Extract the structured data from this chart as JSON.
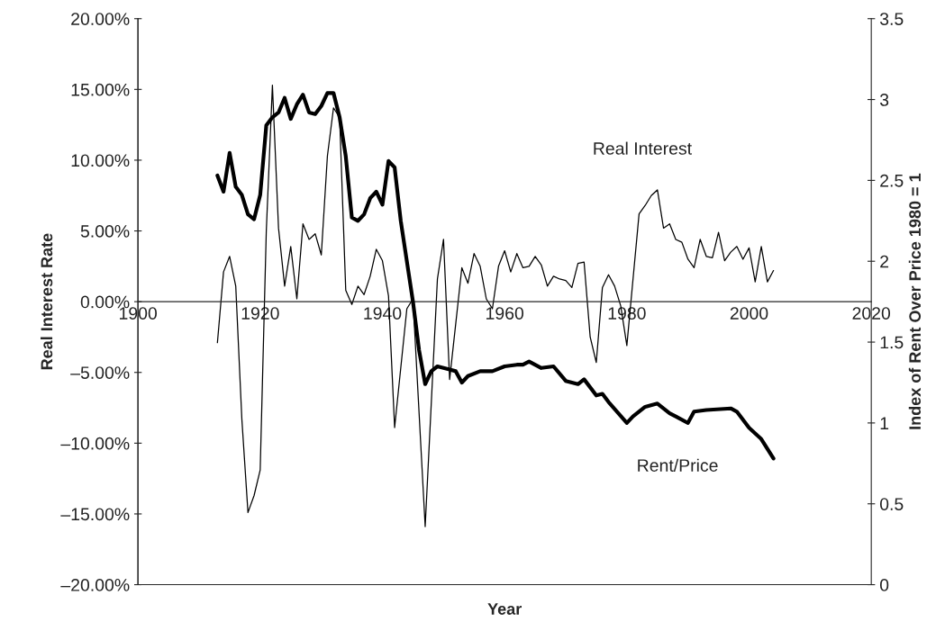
{
  "chart_data": {
    "type": "line",
    "xlabel": "Year",
    "ylabel": "Real Interest Rate",
    "y2label": "Index of Rent Over Price 1980 = 1",
    "xlim": [
      1900,
      2020
    ],
    "xticks": [
      1900,
      1920,
      1940,
      1960,
      1980,
      2000,
      2020
    ],
    "ylim": [
      -20,
      20
    ],
    "yticks": [
      {
        "value": -20,
        "label": "–20.00%"
      },
      {
        "value": -15,
        "label": "–15.00%"
      },
      {
        "value": -10,
        "label": "–10.00%"
      },
      {
        "value": -5,
        "label": "–5.00%"
      },
      {
        "value": 0,
        "label": "0.00%"
      },
      {
        "value": 5,
        "label": "5.00%"
      },
      {
        "value": 10,
        "label": "10.00%"
      },
      {
        "value": 15,
        "label": "15.00%"
      },
      {
        "value": 20,
        "label": "20.00%"
      }
    ],
    "y2lim": [
      0,
      3.5
    ],
    "y2ticks": [
      0,
      0.5,
      1,
      1.5,
      2,
      2.5,
      3,
      3.5
    ],
    "grid": false,
    "legend": false,
    "series": [
      {
        "name": "Real Interest",
        "color": "#000000",
        "x": [
          1913,
          1914,
          1915,
          1916,
          1917,
          1918,
          1919,
          1920,
          1921,
          1922,
          1923,
          1924,
          1925,
          1926,
          1927,
          1928,
          1929,
          1930,
          1931,
          1932,
          1933,
          1934,
          1935,
          1936,
          1937,
          1938,
          1939,
          1940,
          1941,
          1942,
          1944,
          1945,
          1947,
          1949,
          1950,
          1951,
          1953,
          1954,
          1955,
          1956,
          1957,
          1958,
          1959,
          1960,
          1961,
          1962,
          1963,
          1964,
          1965,
          1966,
          1967,
          1968,
          1969,
          1970,
          1971,
          1972,
          1973,
          1974,
          1975,
          1976,
          1977,
          1978,
          1979,
          1980,
          1982,
          1983,
          1984,
          1985,
          1986,
          1987,
          1988,
          1989,
          1990,
          1991,
          1992,
          1993,
          1994,
          1995,
          1996,
          1997,
          1998,
          1999,
          2000,
          2001,
          2002,
          2003,
          2004
        ],
        "values": [
          -2.9,
          2.1,
          3.2,
          1.1,
          -8.3,
          -14.9,
          -13.7,
          -11.9,
          5,
          15.3,
          5.2,
          1.1,
          3.9,
          0.2,
          5.5,
          4.4,
          4.8,
          3.3,
          10.3,
          13.7,
          13.0,
          0.8,
          -0.2,
          1.1,
          0.5,
          1.8,
          3.7,
          2.9,
          0.4,
          -8.9,
          -0.5,
          0.2,
          -15.9,
          1.6,
          4.4,
          -5.5,
          2.4,
          1.3,
          3.4,
          2.5,
          0.2,
          -0.5,
          2.5,
          3.6,
          2.1,
          3.4,
          2.4,
          2.5,
          3.2,
          2.6,
          1.1,
          1.8,
          1.6,
          1.5,
          1.0,
          2.7,
          2.8,
          -2.5,
          -4.3,
          1.0,
          1.9,
          1.1,
          -0.3,
          -3.1,
          6.2,
          6.8,
          7.5,
          7.9,
          5.2,
          5.5,
          4.4,
          4.2,
          3.0,
          2.4,
          4.4,
          3.2,
          3.1,
          4.9,
          2.9,
          3.5,
          3.9,
          3.0,
          3.8,
          1.4,
          3.9,
          1.4,
          2.2
        ]
      },
      {
        "name": "Rent/Price",
        "color": "#000000",
        "axis": "y2",
        "x": [
          1913,
          1914,
          1915,
          1916,
          1917,
          1918,
          1919,
          1920,
          1921,
          1922,
          1923,
          1924,
          1925,
          1926,
          1927,
          1928,
          1929,
          1930,
          1931,
          1932,
          1933,
          1934,
          1935,
          1936,
          1937,
          1938,
          1939,
          1940,
          1941,
          1942,
          1943,
          1944,
          1945,
          1946,
          1947,
          1948,
          1949,
          1951,
          1952,
          1953,
          1954,
          1956,
          1958,
          1960,
          1962,
          1963,
          1964,
          1966,
          1968,
          1970,
          1972,
          1973,
          1975,
          1976,
          1977,
          1980,
          1981,
          1983,
          1985,
          1987,
          1988,
          1990,
          1991,
          1993,
          1997,
          1998,
          2000,
          2002,
          2004
        ],
        "values": [
          2.53,
          2.43,
          2.67,
          2.46,
          2.41,
          2.29,
          2.26,
          2.41,
          2.84,
          2.89,
          2.92,
          3.01,
          2.88,
          2.97,
          3.03,
          2.92,
          2.91,
          2.96,
          3.04,
          3.04,
          2.89,
          2.65,
          2.27,
          2.25,
          2.29,
          2.39,
          2.43,
          2.35,
          2.62,
          2.58,
          2.25,
          2.0,
          1.75,
          1.45,
          1.24,
          1.32,
          1.35,
          1.33,
          1.32,
          1.25,
          1.29,
          1.32,
          1.32,
          1.35,
          1.36,
          1.36,
          1.38,
          1.34,
          1.35,
          1.26,
          1.24,
          1.27,
          1.17,
          1.18,
          1.13,
          1.0,
          1.04,
          1.1,
          1.12,
          1.06,
          1.04,
          1.0,
          1.07,
          1.08,
          1.09,
          1.07,
          0.97,
          0.9,
          0.78
        ]
      }
    ]
  }
}
